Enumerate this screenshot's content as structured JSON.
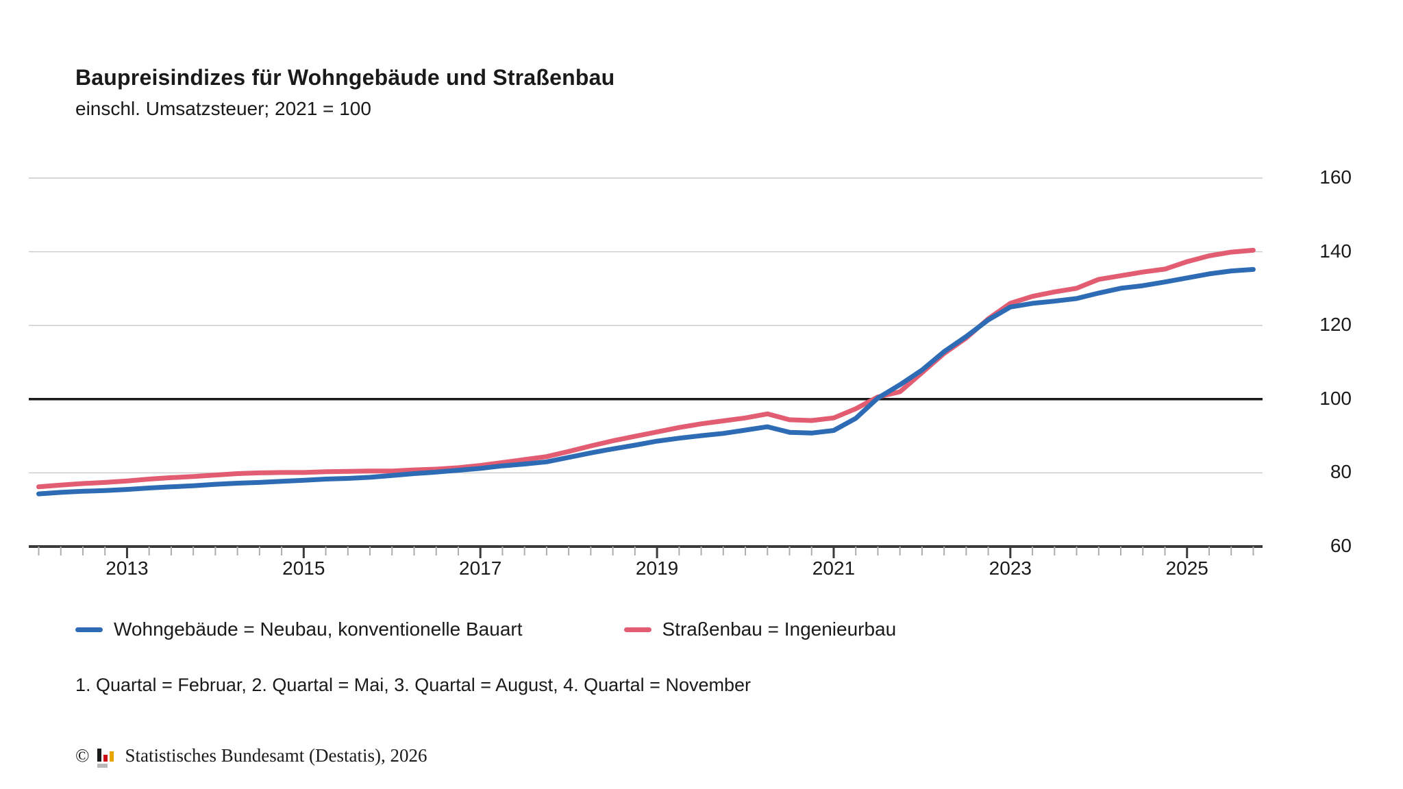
{
  "header": {
    "title": "Baupreisindizes für Wohngebäude und Straßenbau",
    "subtitle": "einschl. Umsatzsteuer; 2021 = 100"
  },
  "chart_data": {
    "type": "line",
    "frequency": "quarterly",
    "x_start": "2012-Q1",
    "x_end": "2025-Q4",
    "x_tick_years": [
      2013,
      2015,
      2017,
      2019,
      2021,
      2023,
      2025
    ],
    "minor_ticks": "every quarter",
    "ylim": [
      60,
      160
    ],
    "yticks": [
      160,
      140,
      120,
      100,
      80,
      60
    ],
    "reference_line_value": 100,
    "grid": "horizontal-light",
    "legend_position": "bottom",
    "series": [
      {
        "name": "Wohngebäude = Neubau, konventionelle Bauart",
        "color": "#2d6cb5",
        "values": [
          74.3,
          74.7,
          75.0,
          75.2,
          75.5,
          75.9,
          76.2,
          76.5,
          76.9,
          77.2,
          77.4,
          77.7,
          78.0,
          78.3,
          78.5,
          78.8,
          79.3,
          79.8,
          80.2,
          80.7,
          81.2,
          81.9,
          82.4,
          83.0,
          84.2,
          85.4,
          86.5,
          87.5,
          88.6,
          89.4,
          90.1,
          90.7,
          91.6,
          92.5,
          91.0,
          90.8,
          91.5,
          94.8,
          100.3,
          103.9,
          107.9,
          112.9,
          117.0,
          121.5,
          125.0,
          126.0,
          126.6,
          127.3,
          128.8,
          130.1,
          130.8,
          131.8,
          132.9,
          134.0,
          134.8,
          135.2
        ]
      },
      {
        "name": "Straßenbau = Ingenieurbau",
        "color": "#e25c72",
        "values": [
          76.2,
          76.7,
          77.1,
          77.4,
          77.8,
          78.3,
          78.7,
          79.0,
          79.4,
          79.8,
          80.0,
          80.1,
          80.1,
          80.3,
          80.4,
          80.5,
          80.5,
          80.8,
          81.0,
          81.4,
          82.0,
          82.8,
          83.6,
          84.4,
          85.8,
          87.3,
          88.7,
          89.9,
          91.1,
          92.3,
          93.3,
          94.1,
          94.9,
          96.0,
          94.4,
          94.2,
          94.9,
          97.4,
          100.6,
          102.0,
          107.2,
          112.4,
          116.6,
          121.8,
          126.0,
          127.9,
          129.1,
          130.1,
          132.5,
          133.5,
          134.5,
          135.3,
          137.3,
          138.9,
          139.9,
          140.4
        ]
      }
    ],
    "axis_colors": {
      "gridline": "#c9c9c9",
      "reference_line": "#1a1a1a",
      "axis_line": "#3a3a3a",
      "minor_tick": "#adadad",
      "major_tick": "#3a3a3a"
    }
  },
  "footnote": {
    "quarters": "1. Quartal = Februar, 2. Quartal = Mai, 3. Quartal = August, 4. Quartal = November"
  },
  "copyright": {
    "symbol": "©",
    "text": "Statistisches Bundesamt (Destatis), 2026",
    "logo_colors": {
      "bar1": "#1a1a1a",
      "bar2": "#cc0a12",
      "bar3": "#e8a500",
      "base": "#b8b8b8"
    }
  }
}
